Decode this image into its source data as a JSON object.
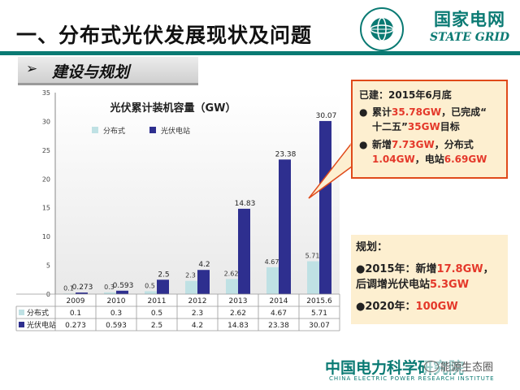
{
  "slide": {
    "title": "一、分布式光伏发展现状及问题",
    "brand_cn": "国家电网",
    "brand_en": "STATE GRID",
    "section_arrow": "➢",
    "section_title": "建设与规划",
    "footer_org": "中国电力科学研究院",
    "footer_en": "CHINA ELECTRIC POWER RESEARCH INSTITUTE",
    "watermark": "能源生态圈"
  },
  "callout_built": {
    "heading": "已建：2015年6月底",
    "bullet_icon": "●",
    "line1_pre": "累计",
    "line1_red": "35.78GW",
    "line1_mid": "，已完成“",
    "line1_cont": "十二五”",
    "line1_red2": "35GW",
    "line1_post": "目标",
    "line2_pre": "新增",
    "line2_red": "7.73GW",
    "line2_mid": "，分布式",
    "line2_red2": "1.04GW",
    "line2_mid2": "，电站",
    "line2_red3": "6.69GW"
  },
  "callout_plan": {
    "heading": "规划：",
    "bullet_icon": "●",
    "line1_pre": "2015年：新增",
    "line1_red": "17.8GW",
    "line1_mid": "，后调增光伏电站",
    "line1_red2": "5.3GW",
    "line2_pre": "2020年：",
    "line2_red": "100GW"
  },
  "chart_data": {
    "type": "bar",
    "title": "光伏累计装机容量（GW）",
    "categories": [
      "2009",
      "2010",
      "2011",
      "2012",
      "2013",
      "2014",
      "2015.6"
    ],
    "series": [
      {
        "name": "分布式",
        "values": [
          0.1,
          0.3,
          0.5,
          2.3,
          2.62,
          4.67,
          5.71
        ],
        "color": "#bfe1e4"
      },
      {
        "name": "光伏电站",
        "values": [
          0.273,
          0.593,
          2.5,
          4.2,
          14.83,
          23.38,
          30.07
        ],
        "color": "#2e2f8f"
      }
    ],
    "data_labels_a": [
      "0.1",
      "0.3",
      "0.5",
      "2.3",
      "2.62",
      "4.67",
      "5.71"
    ],
    "data_labels_b": [
      "0.273",
      "0.593",
      "2.5",
      "4.2",
      "14.83",
      "23.38",
      "30.07"
    ],
    "yticks": [
      "0",
      "5",
      "10",
      "15",
      "20",
      "25",
      "30",
      "35"
    ],
    "ylim": [
      0,
      35
    ],
    "legend": "top-left",
    "table": true,
    "grid": false
  }
}
